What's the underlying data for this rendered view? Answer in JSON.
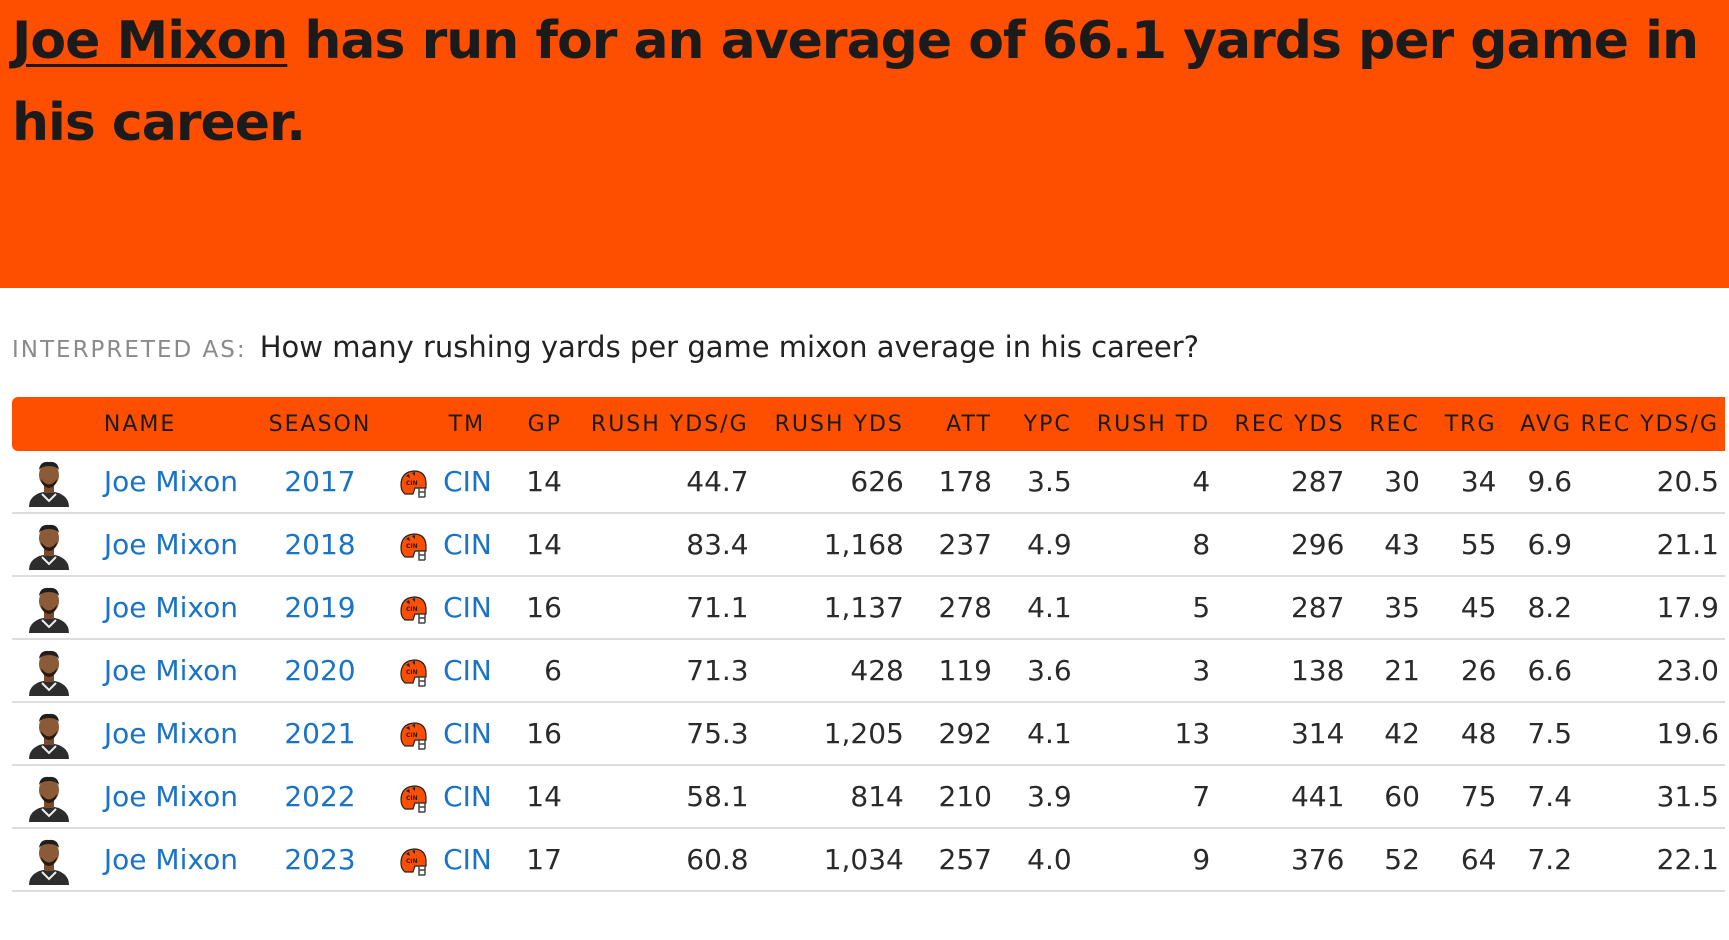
{
  "headline": {
    "player_link": "Joe Mixon",
    "text": " has run for an average of 66.1 yards per game in his career."
  },
  "interpretation": {
    "label": "INTERPRETED AS:",
    "question": "How many rushing yards per game mixon average in his career?"
  },
  "colors": {
    "accent": "#fe4e00",
    "link": "#1a73c7"
  },
  "table": {
    "headers": [
      "",
      "NAME",
      "SEASON",
      "",
      "TM",
      "GP",
      "RUSH YDS/G",
      "RUSH YDS",
      "ATT",
      "YPC",
      "RUSH TD",
      "REC YDS",
      "REC",
      "TRG",
      "AVG",
      "REC YDS/G"
    ],
    "rows": [
      {
        "name": "Joe Mixon",
        "season": "2017",
        "tm": "CIN",
        "gp": "14",
        "rush_ypg": "44.7",
        "rush_yds": "626",
        "att": "178",
        "ypc": "3.5",
        "rush_td": "4",
        "rec_yds": "287",
        "rec": "30",
        "trg": "34",
        "avg": "9.6",
        "rec_ypg": "20.5"
      },
      {
        "name": "Joe Mixon",
        "season": "2018",
        "tm": "CIN",
        "gp": "14",
        "rush_ypg": "83.4",
        "rush_yds": "1,168",
        "att": "237",
        "ypc": "4.9",
        "rush_td": "8",
        "rec_yds": "296",
        "rec": "43",
        "trg": "55",
        "avg": "6.9",
        "rec_ypg": "21.1"
      },
      {
        "name": "Joe Mixon",
        "season": "2019",
        "tm": "CIN",
        "gp": "16",
        "rush_ypg": "71.1",
        "rush_yds": "1,137",
        "att": "278",
        "ypc": "4.1",
        "rush_td": "5",
        "rec_yds": "287",
        "rec": "35",
        "trg": "45",
        "avg": "8.2",
        "rec_ypg": "17.9"
      },
      {
        "name": "Joe Mixon",
        "season": "2020",
        "tm": "CIN",
        "gp": "6",
        "rush_ypg": "71.3",
        "rush_yds": "428",
        "att": "119",
        "ypc": "3.6",
        "rush_td": "3",
        "rec_yds": "138",
        "rec": "21",
        "trg": "26",
        "avg": "6.6",
        "rec_ypg": "23.0"
      },
      {
        "name": "Joe Mixon",
        "season": "2021",
        "tm": "CIN",
        "gp": "16",
        "rush_ypg": "75.3",
        "rush_yds": "1,205",
        "att": "292",
        "ypc": "4.1",
        "rush_td": "13",
        "rec_yds": "314",
        "rec": "42",
        "trg": "48",
        "avg": "7.5",
        "rec_ypg": "19.6"
      },
      {
        "name": "Joe Mixon",
        "season": "2022",
        "tm": "CIN",
        "gp": "14",
        "rush_ypg": "58.1",
        "rush_yds": "814",
        "att": "210",
        "ypc": "3.9",
        "rush_td": "7",
        "rec_yds": "441",
        "rec": "60",
        "trg": "75",
        "avg": "7.4",
        "rec_ypg": "31.5"
      },
      {
        "name": "Joe Mixon",
        "season": "2023",
        "tm": "CIN",
        "gp": "17",
        "rush_ypg": "60.8",
        "rush_yds": "1,034",
        "att": "257",
        "ypc": "4.0",
        "rush_td": "9",
        "rec_yds": "376",
        "rec": "52",
        "trg": "64",
        "avg": "7.2",
        "rec_ypg": "22.1"
      }
    ]
  }
}
